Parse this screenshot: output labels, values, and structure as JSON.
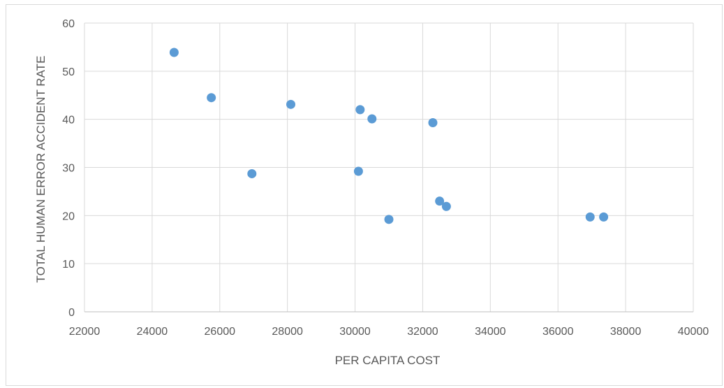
{
  "chart_data": {
    "type": "scatter",
    "title": "",
    "xlabel": "PER CAPITA COST",
    "ylabel": "TOTAL HUMAN ERROR ACCIDENT RATE",
    "xlim": [
      22000,
      40000
    ],
    "ylim": [
      0,
      60
    ],
    "xticks": [
      22000,
      24000,
      26000,
      28000,
      30000,
      32000,
      34000,
      36000,
      38000,
      40000
    ],
    "yticks": [
      0,
      10,
      20,
      30,
      40,
      50,
      60
    ],
    "grid": true,
    "legend": "none",
    "series": [
      {
        "color": "#5b9bd5",
        "points": [
          {
            "x": 24650,
            "y": 53.9
          },
          {
            "x": 25750,
            "y": 44.5
          },
          {
            "x": 26950,
            "y": 28.7
          },
          {
            "x": 28100,
            "y": 43.1
          },
          {
            "x": 30100,
            "y": 29.2
          },
          {
            "x": 30150,
            "y": 42.0
          },
          {
            "x": 30500,
            "y": 40.1
          },
          {
            "x": 31000,
            "y": 19.2
          },
          {
            "x": 32300,
            "y": 39.3
          },
          {
            "x": 32500,
            "y": 23.0
          },
          {
            "x": 32700,
            "y": 21.9
          },
          {
            "x": 36950,
            "y": 19.7
          },
          {
            "x": 37350,
            "y": 19.7
          }
        ]
      }
    ]
  }
}
